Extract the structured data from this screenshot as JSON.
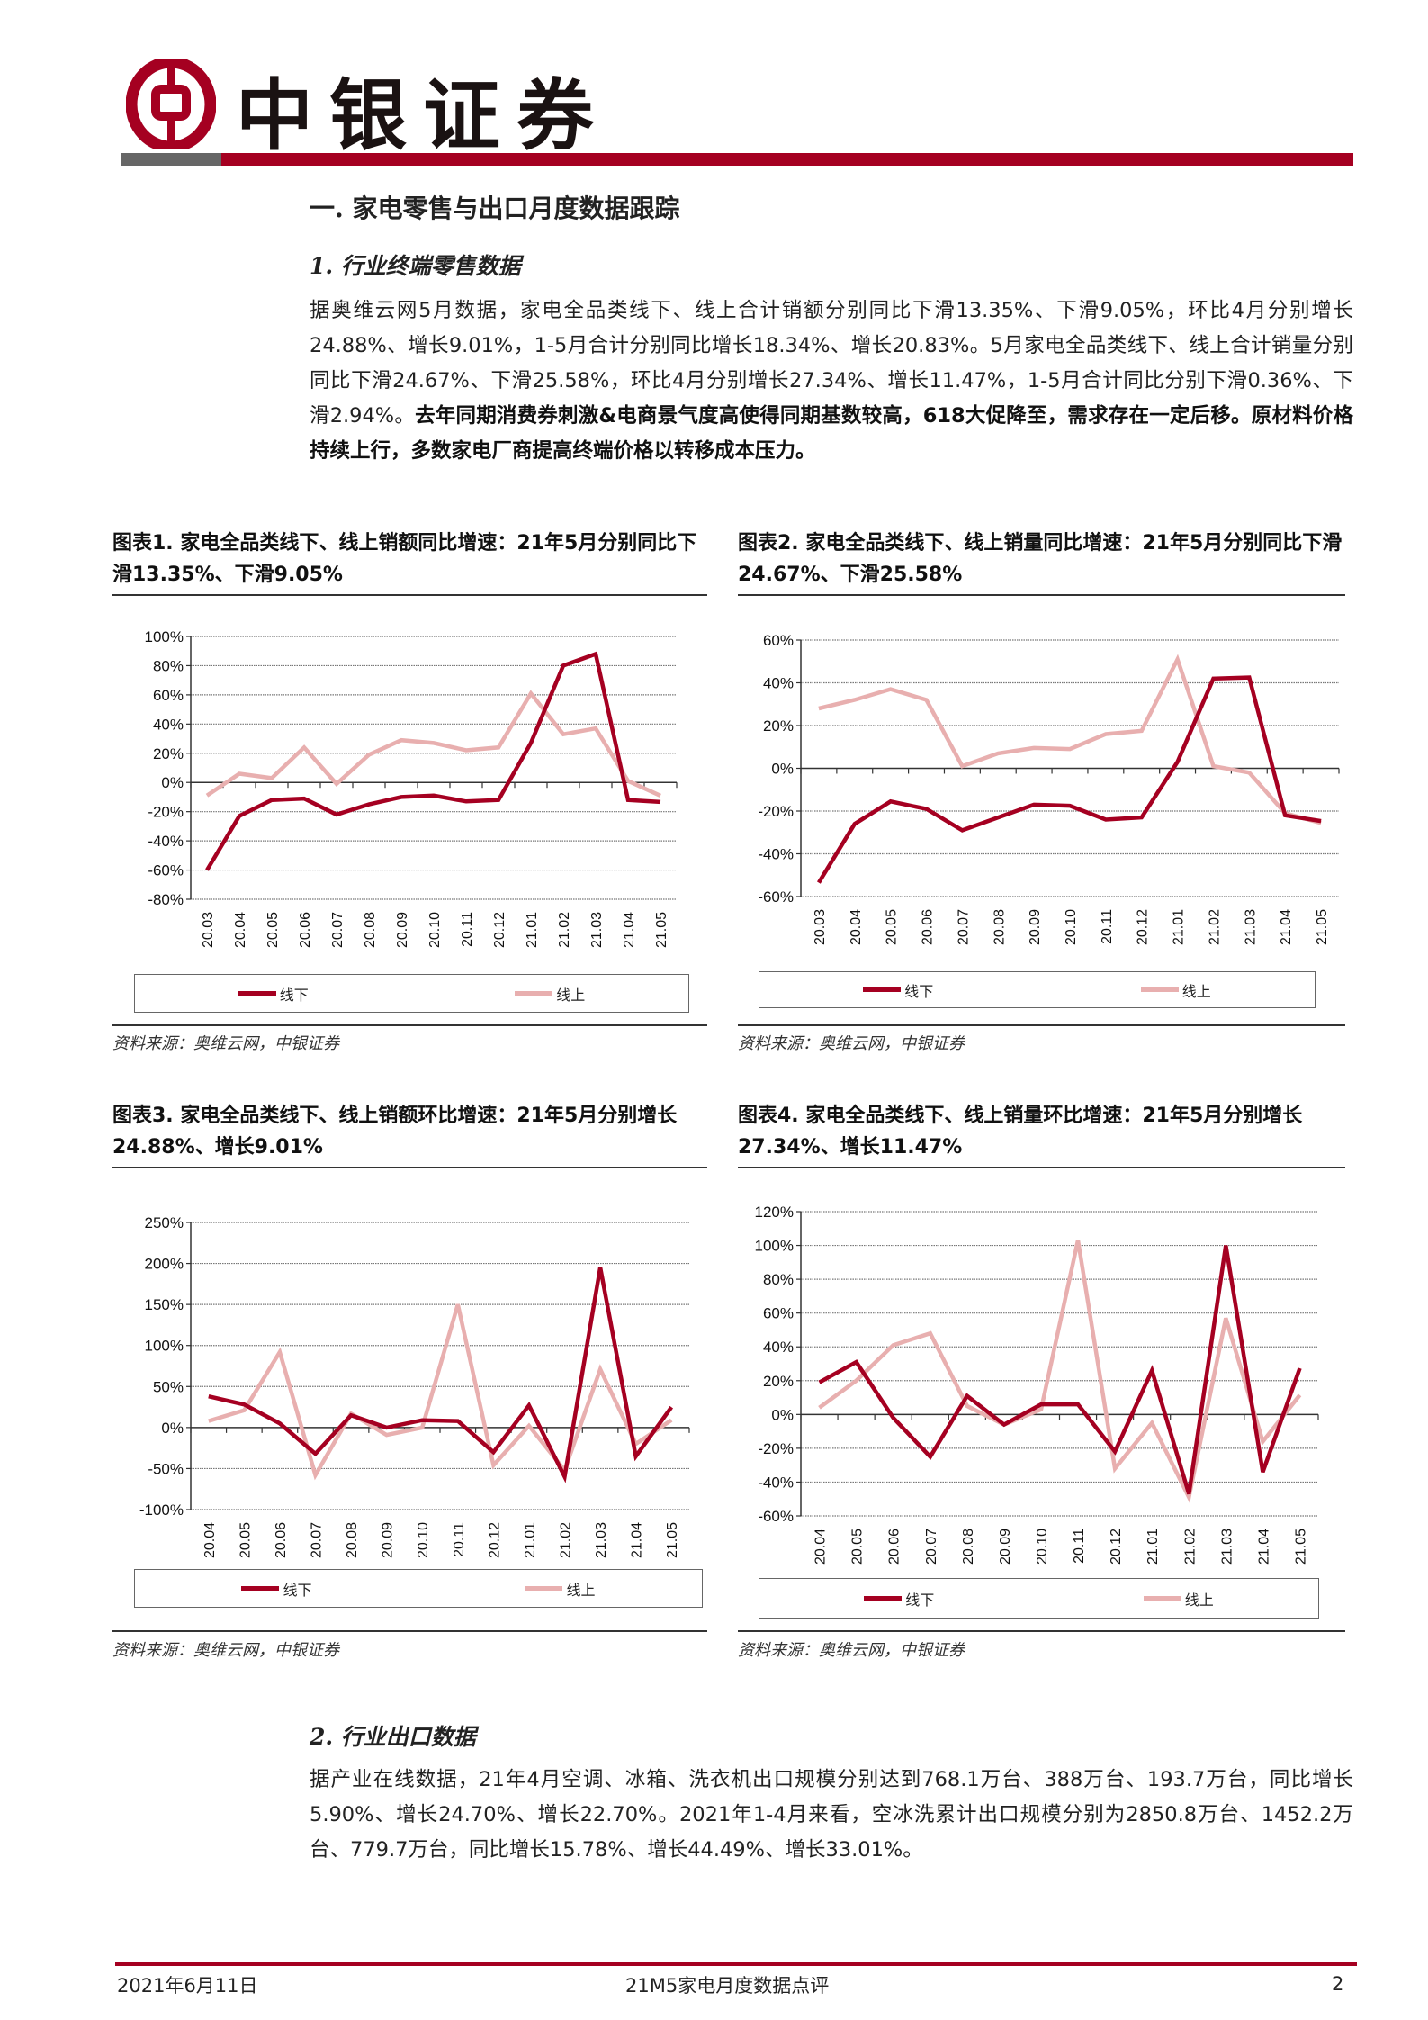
{
  "header": {
    "logo_text": "中银证券",
    "brand_color": "#A50021",
    "gray_color": "#666666"
  },
  "section1": {
    "title": "一. 家电零售与出口月度数据跟踪",
    "sub1_title": "1. 行业终端零售数据",
    "sub1_para_normal": "据奥维云网5月数据，家电全品类线下、线上合计销额分别同比下滑13.35%、下滑9.05%，环比4月分别增长24.88%、增长9.01%，1-5月合计分别同比增长18.34%、增长20.83%。5月家电全品类线下、线上合计销量分别同比下滑24.67%、下滑25.58%，环比4月分别增长27.34%、增长11.47%，1-5月合计同比分别下滑0.36%、下滑2.94%。",
    "sub1_para_bold": "去年同期消费券刺激&电商景气度高使得同期基数较高，618大促降至，需求存在一定后移。原材料价格持续上行，多数家电厂商提高终端价格以转移成本压力。",
    "sub2_title": "2. 行业出口数据",
    "sub2_para": "据产业在线数据，21年4月空调、冰箱、洗衣机出口规模分别达到768.1万台、388万台、193.7万台，同比增长5.90%、增长24.70%、增长22.70%。2021年1-4月来看，空冰洗累计出口规模分别为2850.8万台、1452.2万台、779.7万台，同比增长15.78%、增长44.49%、增长33.01%。"
  },
  "charts": [
    {
      "title": "图表1. 家电全品类线下、线上销额同比增速：21年5月分别同比下滑13.35%、下滑9.05%",
      "source": "资料来源：奥维云网，中银证券"
    },
    {
      "title": "图表2. 家电全品类线下、线上销量同比增速：21年5月分别同比下滑24.67%、下滑25.58%",
      "source": "资料来源：奥维云网，中银证券"
    },
    {
      "title": "图表3. 家电全品类线下、线上销额环比增速：21年5月分别增长24.88%、增长9.01%",
      "source": "资料来源：奥维云网，中银证券"
    },
    {
      "title": "图表4. 家电全品类线下、线上销量环比增速：21年5月分别增长27.34%、增长11.47%",
      "source": "资料来源：奥维云网，中银证券"
    }
  ],
  "chart_data": [
    {
      "type": "line",
      "categories": [
        "20.03",
        "20.04",
        "20.05",
        "20.06",
        "20.07",
        "20.08",
        "20.09",
        "20.10",
        "20.11",
        "20.12",
        "21.01",
        "21.02",
        "21.03",
        "21.04",
        "21.05"
      ],
      "ylim": [
        -80,
        100
      ],
      "yticks": [
        "-80%",
        "-60%",
        "-40%",
        "-20%",
        "0%",
        "20%",
        "40%",
        "60%",
        "80%",
        "100%"
      ],
      "ytick_values": [
        -80,
        -60,
        -40,
        -20,
        0,
        20,
        40,
        60,
        80,
        100
      ],
      "grid": true,
      "legend": "bottom",
      "series": [
        {
          "name": "线下",
          "color": "#A50021",
          "values": [
            -60,
            -23,
            -12,
            -11,
            -22,
            -15,
            -10,
            -9,
            -13,
            -12,
            27,
            80,
            88,
            -12,
            -13.35
          ]
        },
        {
          "name": "线上",
          "color": "#E8AFAF",
          "values": [
            -9,
            6,
            3,
            24,
            -1,
            19,
            29,
            27,
            22,
            24,
            61,
            33,
            37,
            1,
            -9.05
          ]
        }
      ]
    },
    {
      "type": "line",
      "categories": [
        "20.03",
        "20.04",
        "20.05",
        "20.06",
        "20.07",
        "20.08",
        "20.09",
        "20.10",
        "20.11",
        "20.12",
        "21.01",
        "21.02",
        "21.03",
        "21.04",
        "21.05"
      ],
      "ylim": [
        -60,
        60
      ],
      "yticks": [
        "-60%",
        "-40%",
        "-20%",
        "0%",
        "20%",
        "40%",
        "60%"
      ],
      "ytick_values": [
        -60,
        -40,
        -20,
        0,
        20,
        40,
        60
      ],
      "grid": true,
      "legend": "bottom",
      "series": [
        {
          "name": "线下",
          "color": "#A50021",
          "values": [
            -53.5,
            -26,
            -15.5,
            -19,
            -29,
            -23,
            -17,
            -17.5,
            -24,
            -23,
            3,
            42,
            42.5,
            -22,
            -24.67
          ]
        },
        {
          "name": "线上",
          "color": "#E8AFAF",
          "values": [
            28,
            32,
            37,
            32,
            1,
            7,
            9.5,
            9,
            16,
            17.5,
            51,
            1,
            -2,
            -21,
            -25.58
          ]
        }
      ]
    },
    {
      "type": "line",
      "categories": [
        "20.04",
        "20.05",
        "20.06",
        "20.07",
        "20.08",
        "20.09",
        "20.10",
        "20.11",
        "20.12",
        "21.01",
        "21.02",
        "21.03",
        "21.04",
        "21.05"
      ],
      "ylim": [
        -100,
        250
      ],
      "yticks": [
        "-100%",
        "-50%",
        "0%",
        "50%",
        "100%",
        "150%",
        "200%",
        "250%"
      ],
      "ytick_values": [
        -100,
        -50,
        0,
        50,
        100,
        150,
        200,
        250
      ],
      "grid": true,
      "legend": "bottom",
      "series": [
        {
          "name": "线下",
          "color": "#A50021",
          "values": [
            38,
            28,
            5,
            -32,
            15,
            0,
            9,
            8,
            -30,
            27,
            -60,
            195,
            -35,
            24.88
          ]
        },
        {
          "name": "线上",
          "color": "#E8AFAF",
          "values": [
            8,
            21,
            92,
            -58,
            17,
            -9,
            0,
            150,
            -46,
            2,
            -52,
            71,
            -20,
            9.01
          ]
        }
      ]
    },
    {
      "type": "line",
      "categories": [
        "20.04",
        "20.05",
        "20.06",
        "20.07",
        "20.08",
        "20.09",
        "20.10",
        "20.11",
        "20.12",
        "21.01",
        "21.02",
        "21.03",
        "21.04",
        "21.05"
      ],
      "ylim": [
        -60,
        120
      ],
      "yticks": [
        "-60%",
        "-40%",
        "-20%",
        "0%",
        "20%",
        "40%",
        "60%",
        "80%",
        "100%",
        "120%"
      ],
      "ytick_values": [
        -60,
        -40,
        -20,
        0,
        20,
        40,
        60,
        80,
        100,
        120
      ],
      "grid": true,
      "legend": "bottom",
      "series": [
        {
          "name": "线下",
          "color": "#A50021",
          "values": [
            19,
            31,
            -2,
            -25,
            11,
            -6,
            6,
            6,
            -22,
            26,
            -47,
            100,
            -34,
            27.34
          ]
        },
        {
          "name": "线上",
          "color": "#E8AFAF",
          "values": [
            4,
            20,
            41,
            48,
            5,
            -6,
            3,
            103,
            -32,
            -5,
            -49,
            57,
            -16,
            11.47
          ]
        }
      ]
    }
  ],
  "footer": {
    "date": "2021年6月11日",
    "report_name": "21M5家电月度数据点评",
    "page_number": "2"
  }
}
